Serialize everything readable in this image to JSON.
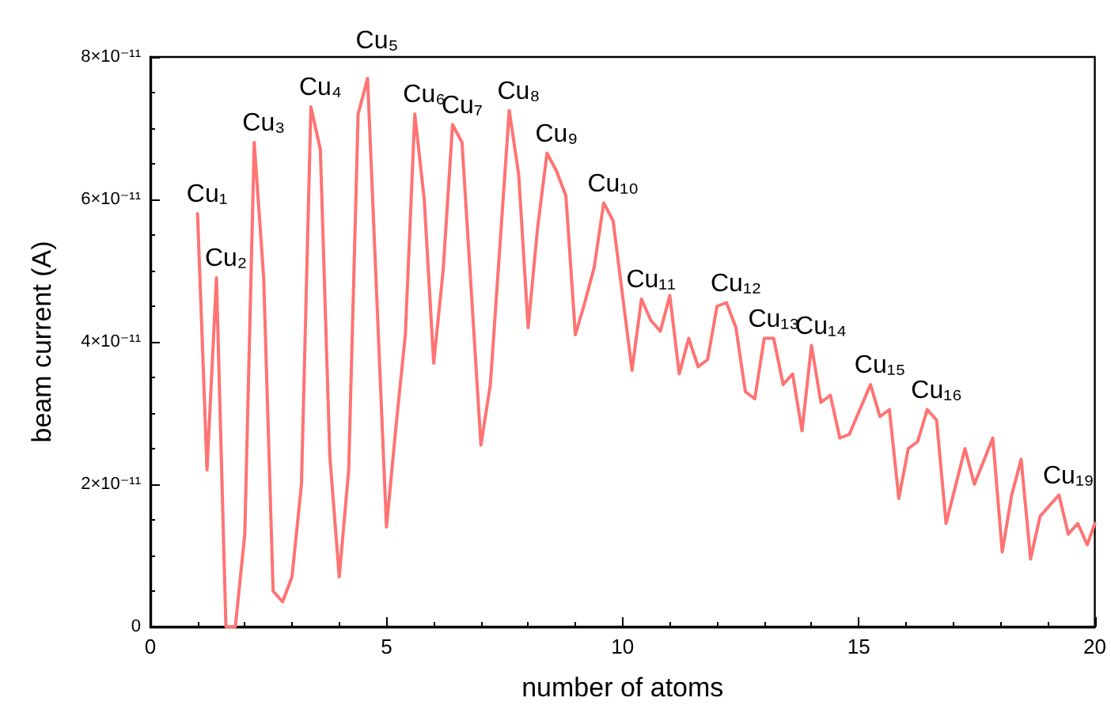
{
  "chart_data": {
    "type": "line",
    "xlabel": "number of atoms",
    "ylabel": "beam current (A)",
    "xlim": [
      0,
      20
    ],
    "xticks": [
      0,
      5,
      10,
      15,
      20
    ],
    "ylim": [
      0,
      8e-11
    ],
    "yticks": [
      0,
      {
        "value": 2e-11,
        "label": "2×10⁻¹¹"
      },
      {
        "value": 4e-11,
        "label": "4×10⁻¹¹"
      },
      {
        "value": 6e-11,
        "label": "6×10⁻¹¹"
      },
      {
        "value": 8e-11,
        "label": "8×10⁻¹¹"
      }
    ],
    "grid": false,
    "marker": "none",
    "line_style": "solid",
    "series": [
      {
        "color": "#ff7373",
        "x": [
          1.0,
          1.2,
          1.4,
          1.6,
          1.8,
          2.0,
          2.2,
          2.4,
          2.6,
          2.8,
          3.0,
          3.2,
          3.4,
          3.6,
          3.8,
          4.0,
          4.2,
          4.4,
          4.6,
          5.0,
          5.2,
          5.4,
          5.6,
          5.8,
          6.0,
          6.2,
          6.4,
          6.6,
          7.0,
          7.2,
          7.6,
          7.8,
          8.0,
          8.2,
          8.4,
          8.6,
          8.8,
          9.0,
          9.2,
          9.4,
          9.6,
          9.8,
          10.2,
          10.4,
          10.6,
          10.8,
          11.0,
          11.2,
          11.4,
          11.6,
          11.8,
          12.0,
          12.2,
          12.4,
          12.6,
          12.8,
          13.0,
          13.2,
          13.4,
          13.6,
          13.8,
          14.0,
          14.2,
          14.4,
          14.6,
          14.8,
          15.25,
          15.45,
          15.65,
          15.85,
          16.05,
          16.25,
          16.45,
          16.65,
          16.85,
          17.25,
          17.45,
          17.84,
          18.04,
          18.24,
          18.44,
          18.64,
          18.84,
          19.04,
          19.24,
          19.44,
          19.64,
          19.84,
          20.0
        ],
        "values": [
          5.8e-11,
          2.2e-11,
          4.9e-11,
          0,
          0,
          1.3e-11,
          6.8e-11,
          4.9e-11,
          5e-12,
          3.5e-12,
          7e-12,
          2e-11,
          7.3e-11,
          6.7e-11,
          2.4e-11,
          7e-12,
          2.2e-11,
          7.2e-11,
          7.7e-11,
          1.4e-11,
          2.8e-11,
          4.1e-11,
          7.2e-11,
          6e-11,
          3.7e-11,
          5e-11,
          7.05e-11,
          6.8e-11,
          2.55e-11,
          3.4e-11,
          7.25e-11,
          6.35e-11,
          4.2e-11,
          5.6e-11,
          6.65e-11,
          6.4e-11,
          6.05e-11,
          4.1e-11,
          4.55e-11,
          5.05e-11,
          5.95e-11,
          5.7e-11,
          3.6e-11,
          4.6e-11,
          4.3e-11,
          4.15e-11,
          4.65e-11,
          3.55e-11,
          4.05e-11,
          3.65e-11,
          3.75e-11,
          4.5e-11,
          4.55e-11,
          4.2e-11,
          3.3e-11,
          3.2e-11,
          4.05e-11,
          4.05e-11,
          3.4e-11,
          3.55e-11,
          2.75e-11,
          3.95e-11,
          3.15e-11,
          3.25e-11,
          2.65e-11,
          2.7e-11,
          3.4e-11,
          2.95e-11,
          3.05e-11,
          1.8e-11,
          2.5e-11,
          2.6e-11,
          3.05e-11,
          2.9e-11,
          1.45e-11,
          2.5e-11,
          2e-11,
          2.65e-11,
          1.05e-11,
          1.85e-11,
          2.35e-11,
          9.5e-12,
          1.55e-11,
          1.7e-11,
          1.85e-11,
          1.3e-11,
          1.45e-11,
          1.15e-11,
          1.45e-11
        ]
      }
    ],
    "annotations": [
      {
        "text": "Cu₁",
        "x": 1.0,
        "y": 5.8e-11
      },
      {
        "text": "Cu₂",
        "x": 1.4,
        "y": 4.9e-11
      },
      {
        "text": "Cu₃",
        "x": 2.2,
        "y": 6.8e-11
      },
      {
        "text": "Cu₄",
        "x": 3.4,
        "y": 7.3e-11
      },
      {
        "text": "Cu₅",
        "x": 4.6,
        "y": 7.7e-11
      },
      {
        "text": "Cu₆",
        "x": 5.6,
        "y": 7.2e-11
      },
      {
        "text": "Cu₇",
        "x": 6.4,
        "y": 7.05e-11
      },
      {
        "text": "Cu₈",
        "x": 7.6,
        "y": 7.25e-11
      },
      {
        "text": "Cu₉",
        "x": 8.4,
        "y": 6.65e-11
      },
      {
        "text": "Cu₁₀",
        "x": 9.6,
        "y": 5.95e-11
      },
      {
        "text": "Cu₁₁",
        "x": 10.4,
        "y": 4.6e-11
      },
      {
        "text": "Cu₁₂",
        "x": 12.2,
        "y": 4.55e-11
      },
      {
        "text": "Cu₁₃",
        "x": 13.0,
        "y": 4.05e-11
      },
      {
        "text": "Cu₁₄",
        "x": 14.0,
        "y": 3.95e-11
      },
      {
        "text": "Cu₁₅",
        "x": 15.25,
        "y": 3.4e-11
      },
      {
        "text": "Cu₁₆",
        "x": 16.45,
        "y": 3.05e-11
      },
      {
        "text": "Cu₁₉",
        "x": 19.24,
        "y": 1.85e-11
      }
    ]
  }
}
